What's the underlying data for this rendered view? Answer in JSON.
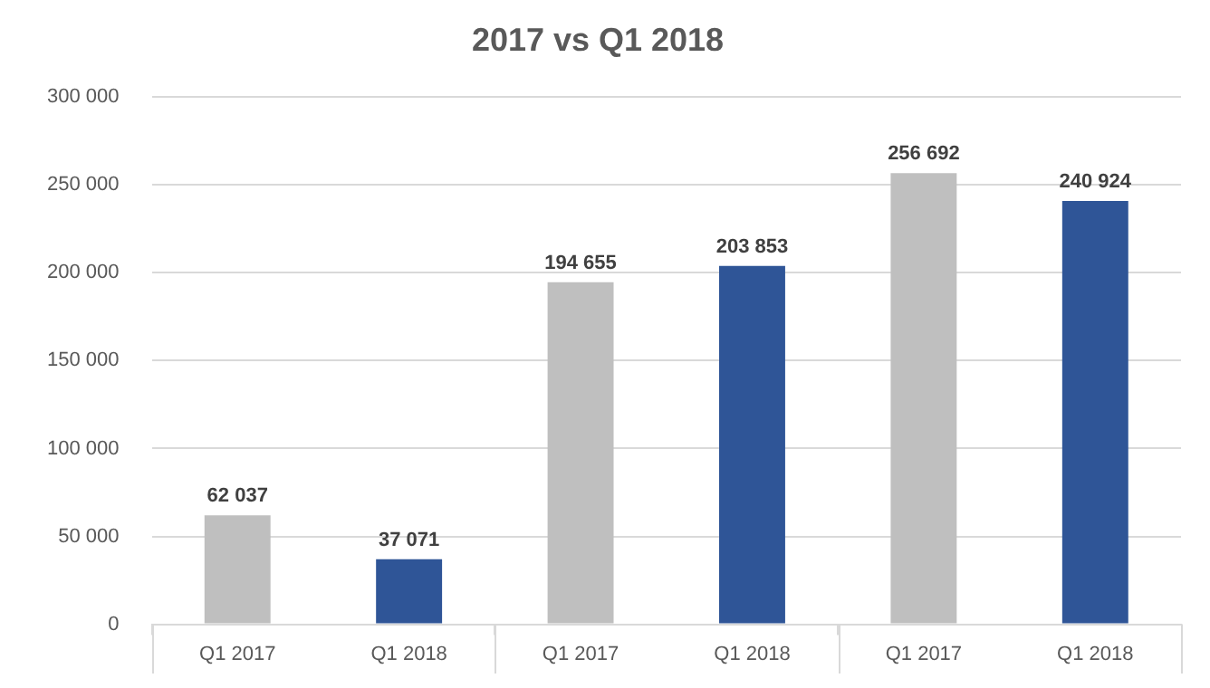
{
  "chart_data": {
    "type": "bar",
    "title": "2017 vs Q1 2018",
    "categories": [
      "Q1 2017",
      "Q1 2018",
      "Q1 2017",
      "Q1 2018",
      "Q1 2017",
      "Q1 2018"
    ],
    "values": [
      62037,
      37071,
      194655,
      203853,
      256692,
      240924
    ],
    "colors": [
      "#bfbfbf",
      "#2f5597",
      "#bfbfbf",
      "#2f5597",
      "#bfbfbf",
      "#2f5597"
    ],
    "value_labels": [
      "62 037",
      "37 071",
      "194 655",
      "203 853",
      "256 692",
      "240 924"
    ],
    "ylim": [
      0,
      300000
    ],
    "yticks": [
      {
        "value": 0,
        "label": "0"
      },
      {
        "value": 50000,
        "label": "50 000"
      },
      {
        "value": 100000,
        "label": "100 000"
      },
      {
        "value": 150000,
        "label": "150 000"
      },
      {
        "value": 200000,
        "label": "200 000"
      },
      {
        "value": 250000,
        "label": "250 000"
      },
      {
        "value": 300000,
        "label": "300 000"
      }
    ],
    "grid": "y",
    "legend": false
  }
}
